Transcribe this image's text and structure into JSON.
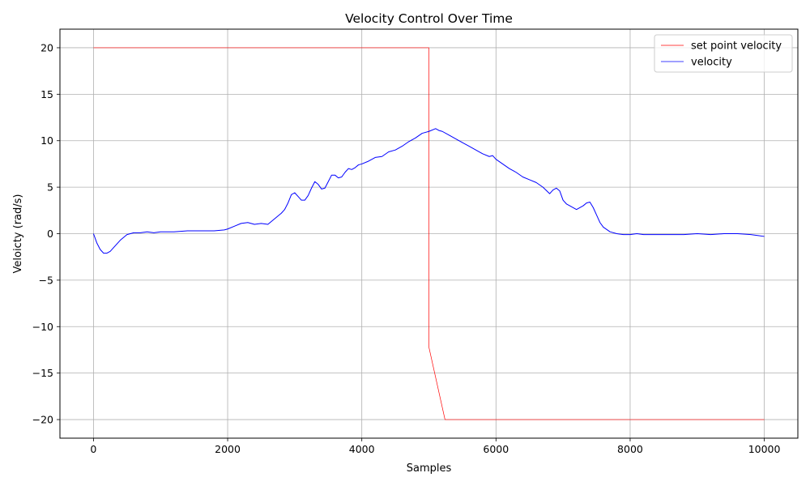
{
  "chart_data": {
    "type": "line",
    "title": "Velocity Control Over Time",
    "xlabel": "Samples",
    "ylabel": "Veloicty (rad/s)",
    "xlim": [
      -500,
      10500
    ],
    "ylim": [
      -22,
      22
    ],
    "xticks": [
      0,
      2000,
      4000,
      6000,
      8000,
      10000
    ],
    "xtick_labels": [
      "0",
      "2000",
      "4000",
      "6000",
      "8000",
      "10000"
    ],
    "yticks": [
      -20,
      -15,
      -10,
      -5,
      0,
      5,
      10,
      15,
      20
    ],
    "ytick_labels": [
      "−20",
      "−15",
      "−10",
      "−5",
      "0",
      "5",
      "10",
      "15",
      "20"
    ],
    "grid": true,
    "legend_position": "top-right",
    "series": [
      {
        "name": "set point velocity",
        "color": "#ff0000",
        "x": [
          0,
          4999,
          5000,
          5240,
          10000
        ],
        "y": [
          20,
          20,
          -12.2,
          -20,
          -20
        ]
      },
      {
        "name": "velocity",
        "color": "#0000ff",
        "x": [
          0,
          50,
          100,
          150,
          200,
          250,
          300,
          400,
          500,
          600,
          700,
          800,
          900,
          1000,
          1200,
          1400,
          1600,
          1800,
          1950,
          2000,
          2100,
          2200,
          2300,
          2400,
          2500,
          2600,
          2700,
          2800,
          2850,
          2900,
          2950,
          3000,
          3050,
          3100,
          3150,
          3200,
          3250,
          3300,
          3350,
          3400,
          3450,
          3500,
          3550,
          3600,
          3650,
          3700,
          3750,
          3800,
          3850,
          3900,
          3950,
          4000,
          4100,
          4200,
          4300,
          4400,
          4500,
          4600,
          4700,
          4800,
          4900,
          5000,
          5100,
          5150,
          5200,
          5300,
          5400,
          5500,
          5600,
          5700,
          5800,
          5900,
          5950,
          6000,
          6100,
          6200,
          6300,
          6400,
          6500,
          6600,
          6700,
          6800,
          6850,
          6900,
          6950,
          7000,
          7050,
          7100,
          7200,
          7300,
          7350,
          7400,
          7450,
          7500,
          7550,
          7600,
          7700,
          7800,
          7900,
          8000,
          8100,
          8200,
          8300,
          8400,
          8600,
          8800,
          9000,
          9200,
          9400,
          9600,
          9800,
          9900,
          10000
        ],
        "y": [
          0,
          -1.0,
          -1.7,
          -2.1,
          -2.1,
          -1.9,
          -1.5,
          -0.7,
          -0.1,
          0.1,
          0.1,
          0.2,
          0.1,
          0.2,
          0.2,
          0.3,
          0.3,
          0.3,
          0.4,
          0.5,
          0.8,
          1.1,
          1.2,
          1.0,
          1.1,
          1.0,
          1.6,
          2.2,
          2.6,
          3.3,
          4.2,
          4.4,
          4.0,
          3.6,
          3.6,
          4.1,
          4.9,
          5.6,
          5.3,
          4.8,
          4.9,
          5.6,
          6.3,
          6.3,
          6.0,
          6.1,
          6.6,
          7.0,
          6.9,
          7.1,
          7.4,
          7.5,
          7.8,
          8.2,
          8.3,
          8.8,
          9.0,
          9.4,
          9.9,
          10.3,
          10.8,
          11.0,
          11.3,
          11.1,
          11.0,
          10.6,
          10.2,
          9.8,
          9.4,
          9.0,
          8.6,
          8.3,
          8.4,
          8.0,
          7.5,
          7.0,
          6.6,
          6.1,
          5.8,
          5.5,
          5.0,
          4.3,
          4.7,
          4.9,
          4.6,
          3.6,
          3.2,
          3.0,
          2.6,
          3.0,
          3.3,
          3.4,
          2.8,
          2.0,
          1.2,
          0.7,
          0.2,
          0.0,
          -0.1,
          -0.1,
          0.0,
          -0.1,
          -0.1,
          -0.1,
          -0.1,
          -0.1,
          0.0,
          -0.1,
          0.0,
          0.0,
          -0.1,
          -0.2,
          -0.3
        ]
      }
    ]
  }
}
